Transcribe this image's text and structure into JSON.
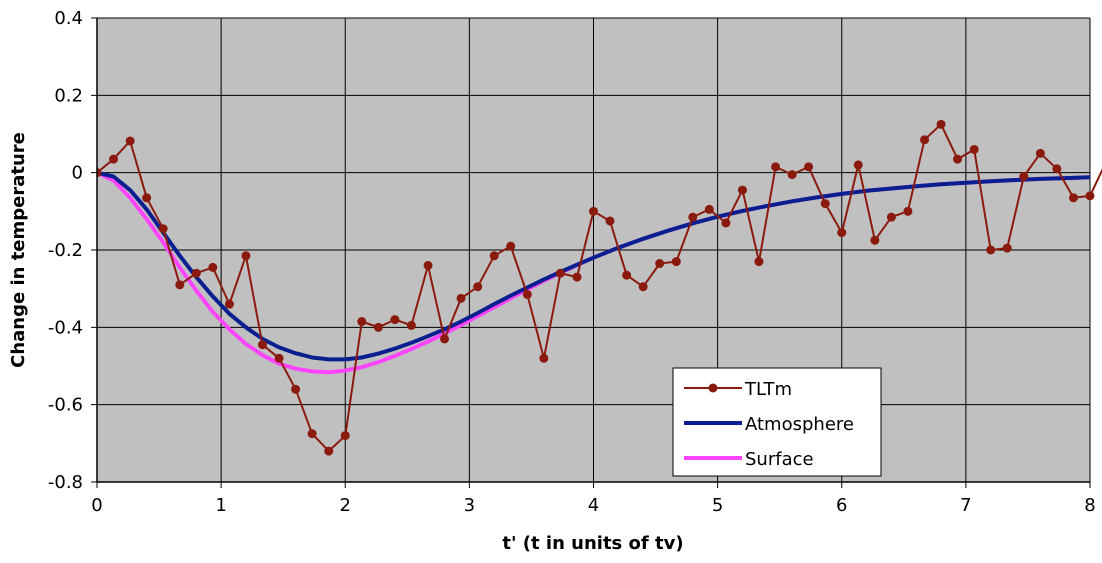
{
  "chart_data": {
    "type": "line",
    "xlabel": "t' (t in units of tv)",
    "ylabel": "Change in temperature",
    "xlim": [
      0,
      8
    ],
    "ylim": [
      -0.8,
      0.4
    ],
    "xticks": [
      "0",
      "1",
      "2",
      "3",
      "4",
      "5",
      "6",
      "7",
      "8"
    ],
    "yticks": [
      "0.4",
      "0.2",
      "0",
      "-0.2",
      "-0.4",
      "-0.6",
      "-0.8"
    ],
    "x_tick_values": [
      0,
      1,
      2,
      3,
      4,
      5,
      6,
      7,
      8
    ],
    "y_tick_values": [
      0.4,
      0.2,
      0,
      -0.2,
      -0.4,
      -0.6,
      -0.8
    ],
    "grid": true,
    "plot_background": "#c0c0c0",
    "legend_position": "bottom-right",
    "series": [
      {
        "name": "TLTm",
        "color": "#8b1a0e",
        "marker": "circle",
        "x": [
          0,
          0.133,
          0.267,
          0.4,
          0.533,
          0.667,
          0.8,
          0.933,
          1.067,
          1.2,
          1.333,
          1.467,
          1.6,
          1.733,
          1.867,
          2.0,
          2.133,
          2.267,
          2.4,
          2.533,
          2.667,
          2.8,
          2.933,
          3.067,
          3.2,
          3.333,
          3.467,
          3.6,
          3.733,
          3.867,
          4.0,
          4.133,
          4.267,
          4.4,
          4.533,
          4.667,
          4.8,
          4.933,
          5.067,
          5.2,
          5.333,
          5.467,
          5.6,
          5.733,
          5.867,
          6.0,
          6.133,
          6.267,
          6.4,
          6.533,
          6.667,
          6.8,
          6.933,
          7.067,
          7.2,
          7.333,
          7.467,
          7.6,
          7.733,
          7.867,
          8.0,
          8.133
        ],
        "values": [
          0.0,
          0.035,
          0.082,
          -0.065,
          -0.145,
          -0.29,
          -0.26,
          -0.245,
          -0.34,
          -0.215,
          -0.445,
          -0.48,
          -0.56,
          -0.675,
          -0.72,
          -0.68,
          -0.385,
          -0.4,
          -0.38,
          -0.395,
          -0.24,
          -0.43,
          -0.325,
          -0.295,
          -0.215,
          -0.19,
          -0.315,
          -0.48,
          -0.26,
          -0.27,
          -0.1,
          -0.125,
          -0.265,
          -0.295,
          -0.235,
          -0.23,
          -0.115,
          -0.095,
          -0.13,
          -0.045,
          -0.23,
          0.015,
          -0.005,
          0.015,
          -0.08,
          -0.155,
          0.02,
          -0.175,
          -0.115,
          -0.1,
          0.085,
          0.125,
          0.035,
          0.06,
          -0.2,
          -0.195,
          -0.01,
          0.05,
          0.01,
          -0.065,
          -0.06,
          0.03
        ]
      },
      {
        "name": "Atmosphere",
        "color": "#0a1f8f",
        "marker": "none",
        "x": [
          0,
          0.133,
          0.267,
          0.4,
          0.533,
          0.667,
          0.8,
          0.933,
          1.067,
          1.2,
          1.333,
          1.467,
          1.6,
          1.733,
          1.867,
          2.0,
          2.133,
          2.267,
          2.4,
          2.533,
          2.667,
          2.8,
          2.933,
          3.067,
          3.2,
          3.333,
          3.467,
          3.6,
          3.733,
          3.867,
          4.0,
          4.2,
          4.4,
          4.6,
          4.8,
          5.0,
          5.2,
          5.4,
          5.6,
          5.8,
          6.0,
          6.2,
          6.4,
          6.6,
          6.8,
          7.0,
          7.2,
          7.4,
          7.6,
          7.8,
          8.0
        ],
        "values": [
          0.0,
          -0.01,
          -0.045,
          -0.095,
          -0.155,
          -0.215,
          -0.27,
          -0.32,
          -0.365,
          -0.4,
          -0.43,
          -0.452,
          -0.467,
          -0.478,
          -0.483,
          -0.483,
          -0.478,
          -0.468,
          -0.455,
          -0.44,
          -0.423,
          -0.405,
          -0.385,
          -0.363,
          -0.34,
          -0.318,
          -0.297,
          -0.276,
          -0.257,
          -0.238,
          -0.22,
          -0.194,
          -0.171,
          -0.15,
          -0.131,
          -0.114,
          -0.099,
          -0.086,
          -0.074,
          -0.064,
          -0.055,
          -0.047,
          -0.041,
          -0.035,
          -0.03,
          -0.026,
          -0.022,
          -0.019,
          -0.016,
          -0.014,
          -0.012
        ]
      },
      {
        "name": "Surface",
        "color": "#ff44ff",
        "marker": "none",
        "x": [
          0,
          0.133,
          0.267,
          0.4,
          0.533,
          0.667,
          0.8,
          0.933,
          1.067,
          1.2,
          1.333,
          1.467,
          1.6,
          1.733,
          1.867,
          2.0,
          2.133,
          2.267,
          2.4,
          2.533,
          2.667,
          2.8,
          2.933,
          3.067,
          3.2,
          3.333,
          3.467,
          3.6,
          3.733,
          3.867,
          4.0,
          4.2,
          4.4,
          4.6,
          4.8,
          5.0,
          5.2,
          5.4,
          5.6,
          5.8,
          6.0,
          6.2,
          6.4,
          6.6,
          6.8,
          7.0,
          7.2,
          7.4,
          7.6,
          7.8,
          8.0
        ],
        "values": [
          0.0,
          -0.02,
          -0.065,
          -0.12,
          -0.18,
          -0.245,
          -0.305,
          -0.36,
          -0.405,
          -0.443,
          -0.472,
          -0.494,
          -0.507,
          -0.514,
          -0.516,
          -0.512,
          -0.503,
          -0.49,
          -0.474,
          -0.456,
          -0.437,
          -0.416,
          -0.394,
          -0.371,
          -0.348,
          -0.325,
          -0.302,
          -0.28,
          -0.259,
          -0.239,
          -0.22,
          -0.194,
          -0.171,
          -0.15,
          -0.131,
          -0.114,
          -0.099,
          -0.086,
          -0.074,
          -0.064,
          -0.055,
          -0.047,
          -0.041,
          -0.035,
          -0.03,
          -0.026,
          -0.022,
          -0.019,
          -0.016,
          -0.014,
          -0.012
        ]
      }
    ]
  }
}
